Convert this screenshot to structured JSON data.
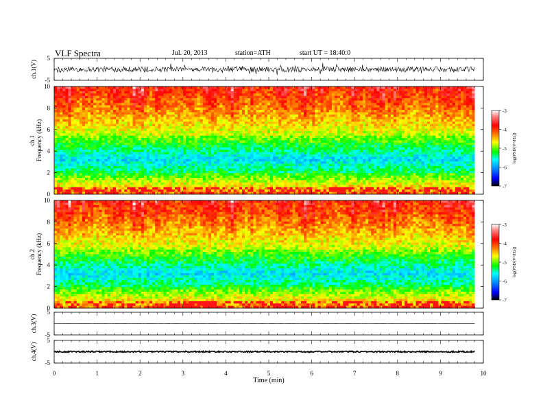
{
  "header": {
    "title": "VLF Spectra",
    "date": "Jul. 20, 2013",
    "station": "station=ATH",
    "start": "start UT = 18:40:0"
  },
  "colors": {
    "spectrum_low": "#000000",
    "spectrum_mid": "#00ff66",
    "spectrum_high": "#ff2a00",
    "trace": "#000000"
  },
  "chart_data": {
    "type": "heatmap",
    "xlabel": "Time (min)",
    "xlim": [
      0,
      10
    ],
    "x_ticks": [
      0,
      1,
      2,
      3,
      4,
      5,
      6,
      7,
      8,
      9,
      10
    ],
    "data_end_min": 9.8,
    "panels": [
      {
        "id": "ch1-trace",
        "type": "line",
        "ylabel": "ch.1(V)",
        "ylim": [
          -5,
          5
        ],
        "y_ticks": [
          -5,
          5
        ],
        "baseline": 0,
        "amplitude": 1.2
      },
      {
        "id": "ch1-spec",
        "type": "heatmap",
        "ylabel_top": "ch.1",
        "ylabel": "Frequency (kHz)",
        "ylim": [
          0,
          10
        ],
        "y_ticks": [
          0,
          2,
          4,
          6,
          8,
          10
        ],
        "colorbar": {
          "label": "log(PSD(V²/Hz))",
          "range": [
            -7,
            -3
          ],
          "ticks": [
            -3,
            -4,
            -5,
            -6,
            -7
          ]
        }
      },
      {
        "id": "ch2-spec",
        "type": "heatmap",
        "ylabel_top": "ch.2",
        "ylabel": "Frequency (kHz)",
        "ylim": [
          0,
          10
        ],
        "y_ticks": [
          0,
          2,
          4,
          6,
          8,
          10
        ],
        "colorbar": {
          "label": "log(PSD(V²/Hz))",
          "range": [
            -7,
            -3
          ],
          "ticks": [
            -3,
            -4,
            -5,
            -6,
            -7
          ]
        }
      },
      {
        "id": "ch3-trace",
        "type": "line",
        "ylabel": "ch.3(V)",
        "ylim": [
          -5,
          5
        ],
        "y_ticks": [
          -5,
          5
        ],
        "baseline": 0,
        "amplitude": 0.05
      },
      {
        "id": "ch4-trace",
        "type": "line",
        "ylabel": "ch.4(V)",
        "ylim": [
          -5,
          5
        ],
        "y_ticks": [
          -5,
          5
        ],
        "baseline": 0,
        "amplitude": 0.3
      }
    ]
  }
}
